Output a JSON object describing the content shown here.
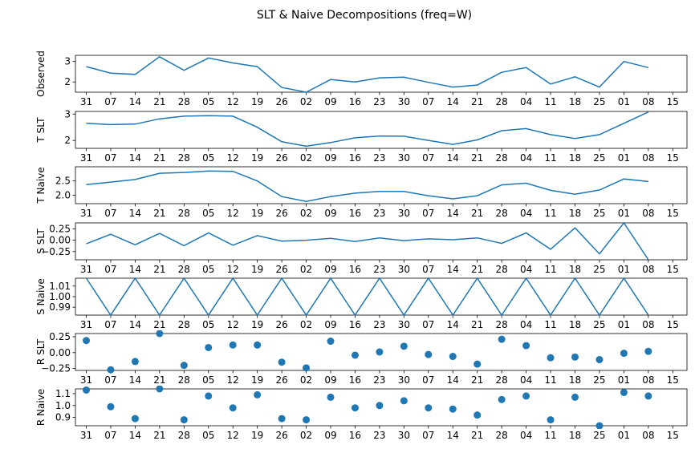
{
  "title": "SLT & Naive Decompositions (freq=W)",
  "x_tick_labels": [
    "31",
    "07",
    "14",
    "21",
    "28",
    "05",
    "12",
    "19",
    "26",
    "02",
    "09",
    "16",
    "23",
    "30",
    "07",
    "14",
    "21",
    "28",
    "04",
    "11",
    "18",
    "25",
    "01",
    "08",
    "15"
  ],
  "line_color": "#1f77b4",
  "chart_data": [
    {
      "type": "line",
      "ylabel": "Observed",
      "yticks": [
        2,
        3
      ],
      "ylim": [
        1.5,
        3.3
      ],
      "values": [
        2.75,
        2.43,
        2.37,
        3.23,
        2.57,
        3.17,
        2.93,
        2.75,
        1.73,
        1.5,
        2.12,
        2.0,
        2.2,
        2.23,
        1.98,
        1.75,
        1.85,
        2.47,
        2.7,
        1.9,
        2.25,
        1.75,
        3.0,
        2.7
      ]
    },
    {
      "type": "line",
      "ylabel": "T SLT",
      "yticks": [
        2,
        3
      ],
      "ylim": [
        1.7,
        3.1
      ],
      "values": [
        2.65,
        2.6,
        2.62,
        2.82,
        2.92,
        2.94,
        2.92,
        2.5,
        1.95,
        1.78,
        1.92,
        2.1,
        2.17,
        2.16,
        2.0,
        1.85,
        2.02,
        2.37,
        2.45,
        2.22,
        2.07,
        2.22,
        2.65,
        3.08
      ]
    },
    {
      "type": "line",
      "ylabel": "T Naive",
      "yticks": [
        2.0,
        2.5
      ],
      "ylim": [
        1.7,
        3.0
      ],
      "values": [
        2.37,
        2.46,
        2.55,
        2.77,
        2.8,
        2.85,
        2.84,
        2.5,
        1.95,
        1.78,
        1.95,
        2.07,
        2.13,
        2.13,
        1.98,
        1.87,
        1.98,
        2.36,
        2.42,
        2.17,
        2.03,
        2.18,
        2.57,
        2.48
      ]
    },
    {
      "type": "line",
      "ylabel": "S SLT",
      "yticks": [
        0.25,
        0.0,
        -0.25
      ],
      "ylim": [
        -0.43,
        0.38
      ],
      "values": [
        -0.08,
        0.13,
        -0.1,
        0.15,
        -0.12,
        0.16,
        -0.11,
        0.1,
        -0.02,
        0.0,
        0.04,
        -0.03,
        0.05,
        -0.01,
        0.03,
        0.01,
        0.05,
        -0.07,
        0.16,
        -0.2,
        0.27,
        -0.3,
        0.38,
        -0.43
      ]
    },
    {
      "type": "line",
      "ylabel": "S Naive",
      "yticks": [
        1.01,
        1.0,
        0.99
      ],
      "ylim": [
        0.9825,
        1.0175
      ],
      "values": [
        1.0175,
        0.9825,
        1.0175,
        0.9825,
        1.0175,
        0.9825,
        1.0175,
        0.9825,
        1.0175,
        0.9825,
        1.0175,
        0.9825,
        1.0175,
        0.9825,
        1.0175,
        0.9825,
        1.0175,
        0.9825,
        1.0175,
        0.9825,
        1.0175,
        0.9825,
        1.0175,
        0.9825
      ]
    },
    {
      "type": "scatter",
      "ylabel": "R SLT",
      "yticks": [
        0.25,
        0.0,
        -0.25
      ],
      "ylim": [
        -0.28,
        0.3
      ],
      "values": [
        0.19,
        -0.27,
        -0.14,
        0.3,
        -0.2,
        0.08,
        0.12,
        0.12,
        -0.15,
        -0.24,
        0.18,
        -0.04,
        0.01,
        0.1,
        -0.03,
        -0.06,
        -0.18,
        0.21,
        0.11,
        -0.08,
        -0.07,
        -0.11,
        -0.01,
        0.02
      ]
    },
    {
      "type": "scatter",
      "ylabel": "R Naive",
      "yticks": [
        1.1,
        1.0,
        0.9
      ],
      "ylim": [
        0.83,
        1.14
      ],
      "values": [
        1.13,
        0.99,
        0.89,
        1.14,
        0.88,
        1.08,
        0.98,
        1.09,
        0.89,
        0.88,
        1.07,
        0.98,
        1.0,
        1.04,
        0.98,
        0.97,
        0.92,
        1.05,
        1.08,
        0.88,
        1.07,
        0.83,
        1.11,
        1.08
      ]
    }
  ]
}
